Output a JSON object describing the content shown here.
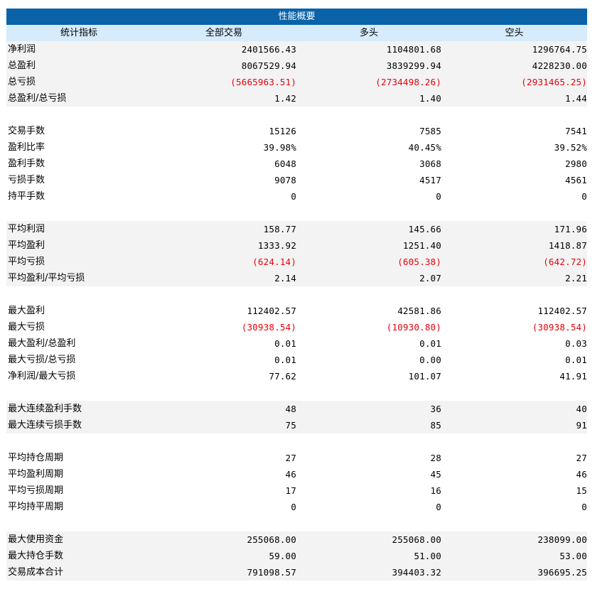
{
  "title": "性能概要",
  "headers": [
    "统计指标",
    "全部交易",
    "多头",
    "空头"
  ],
  "colors": {
    "title_bg": "#0a63a8",
    "header_bg": "#d6ebfb",
    "row_shade": "#f3f3f3",
    "negative": "#e8000b"
  },
  "groups": [
    {
      "shaded": true,
      "rows": [
        {
          "label": "净利润",
          "values": [
            "2401566.43",
            "1104801.68",
            "1296764.75"
          ],
          "negative": false
        },
        {
          "label": "总盈利",
          "values": [
            "8067529.94",
            "3839299.94",
            "4228230.00"
          ],
          "negative": false
        },
        {
          "label": "总亏损",
          "values": [
            "(5665963.51)",
            "(2734498.26)",
            "(2931465.25)"
          ],
          "negative": true
        },
        {
          "label": "总盈利/总亏损",
          "values": [
            "1.42",
            "1.40",
            "1.44"
          ],
          "negative": false
        }
      ]
    },
    {
      "shaded": false,
      "rows": [
        {
          "label": "交易手数",
          "values": [
            "15126",
            "7585",
            "7541"
          ],
          "negative": false
        },
        {
          "label": "盈利比率",
          "values": [
            "39.98%",
            "40.45%",
            "39.52%"
          ],
          "negative": false
        },
        {
          "label": "盈利手数",
          "values": [
            "6048",
            "3068",
            "2980"
          ],
          "negative": false
        },
        {
          "label": "亏损手数",
          "values": [
            "9078",
            "4517",
            "4561"
          ],
          "negative": false
        },
        {
          "label": "持平手数",
          "values": [
            "0",
            "0",
            "0"
          ],
          "negative": false
        }
      ]
    },
    {
      "shaded": true,
      "rows": [
        {
          "label": "平均利润",
          "values": [
            "158.77",
            "145.66",
            "171.96"
          ],
          "negative": false
        },
        {
          "label": "平均盈利",
          "values": [
            "1333.92",
            "1251.40",
            "1418.87"
          ],
          "negative": false
        },
        {
          "label": "平均亏损",
          "values": [
            "(624.14)",
            "(605.38)",
            "(642.72)"
          ],
          "negative": true
        },
        {
          "label": "平均盈利/平均亏损",
          "values": [
            "2.14",
            "2.07",
            "2.21"
          ],
          "negative": false
        }
      ]
    },
    {
      "shaded": false,
      "rows": [
        {
          "label": "最大盈利",
          "values": [
            "112402.57",
            "42581.86",
            "112402.57"
          ],
          "negative": false
        },
        {
          "label": "最大亏损",
          "values": [
            "(30938.54)",
            "(10930.80)",
            "(30938.54)"
          ],
          "negative": true
        },
        {
          "label": "最大盈利/总盈利",
          "values": [
            "0.01",
            "0.01",
            "0.03"
          ],
          "negative": false
        },
        {
          "label": "最大亏损/总亏损",
          "values": [
            "0.01",
            "0.00",
            "0.01"
          ],
          "negative": false
        },
        {
          "label": "净利润/最大亏损",
          "values": [
            "77.62",
            "101.07",
            "41.91"
          ],
          "negative": false
        }
      ]
    },
    {
      "shaded": true,
      "rows": [
        {
          "label": "最大连续盈利手数",
          "values": [
            "48",
            "36",
            "40"
          ],
          "negative": false
        },
        {
          "label": "最大连续亏损手数",
          "values": [
            "75",
            "85",
            "91"
          ],
          "negative": false
        }
      ]
    },
    {
      "shaded": false,
      "rows": [
        {
          "label": "平均持仓周期",
          "values": [
            "27",
            "28",
            "27"
          ],
          "negative": false
        },
        {
          "label": "平均盈利周期",
          "values": [
            "46",
            "45",
            "46"
          ],
          "negative": false
        },
        {
          "label": "平均亏损周期",
          "values": [
            "17",
            "16",
            "15"
          ],
          "negative": false
        },
        {
          "label": "平均持平周期",
          "values": [
            "0",
            "0",
            "0"
          ],
          "negative": false
        }
      ]
    },
    {
      "shaded": true,
      "rows": [
        {
          "label": "最大使用资金",
          "values": [
            "255068.00",
            "255068.00",
            "238099.00"
          ],
          "negative": false
        },
        {
          "label": "最大持仓手数",
          "values": [
            "59.00",
            "51.00",
            "53.00"
          ],
          "negative": false
        },
        {
          "label": "交易成本合计",
          "values": [
            "791098.57",
            "394403.32",
            "396695.25"
          ],
          "negative": false
        }
      ]
    }
  ]
}
